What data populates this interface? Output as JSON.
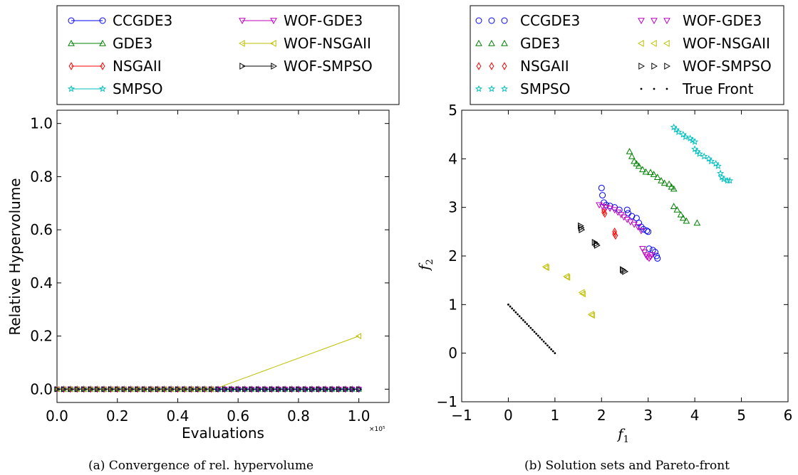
{
  "charts": [
    {
      "caption": "(a) Convergence of rel. hypervolume",
      "chart_data": {
        "type": "line",
        "title": "",
        "xlabel": "Evaluations",
        "ylabel": "Relative Hypervolume",
        "x_multiplier": "×10⁵",
        "xlim": [
          0.0,
          1.1
        ],
        "ylim": [
          -0.05,
          1.05
        ],
        "x_ticks": [
          "0.0",
          "0.2",
          "0.4",
          "0.6",
          "0.8",
          "1.0"
        ],
        "y_ticks": [
          "0.0",
          "0.2",
          "0.4",
          "0.6",
          "0.8",
          "1.0"
        ],
        "legend_placement": "above plot, two columns",
        "grid": false,
        "series": [
          {
            "name": "CCGDE3",
            "color": "#0000ff",
            "marker": "circle",
            "x": [
              0.0,
              1.0
            ],
            "y": [
              0.0,
              0.0
            ]
          },
          {
            "name": "GDE3",
            "color": "#008000",
            "marker": "triangle-up",
            "x": [
              0.0,
              1.0
            ],
            "y": [
              0.0,
              0.0
            ]
          },
          {
            "name": "NSGAII",
            "color": "#ff0000",
            "marker": "diamond",
            "x": [
              0.0,
              1.0
            ],
            "y": [
              0.0,
              0.0
            ]
          },
          {
            "name": "SMPSO",
            "color": "#00bfbf",
            "marker": "star",
            "x": [
              0.0,
              1.0
            ],
            "y": [
              0.0,
              0.0
            ]
          },
          {
            "name": "WOF-GDE3",
            "color": "#bf00bf",
            "marker": "triangle-down",
            "x": [
              0.0,
              1.0
            ],
            "y": [
              0.0,
              0.0
            ]
          },
          {
            "name": "WOF-NSGAII",
            "color": "#bfbf00",
            "marker": "triangle-left",
            "x": [
              0.0,
              0.52,
              1.0
            ],
            "y": [
              0.0,
              0.0,
              0.2
            ]
          },
          {
            "name": "WOF-SMPSO",
            "color": "#000000",
            "marker": "triangle-right",
            "x": [
              0.0,
              1.0
            ],
            "y": [
              0.0,
              0.0
            ]
          }
        ]
      }
    },
    {
      "caption": "(b) Solution sets and Pareto-front",
      "chart_data": {
        "type": "scatter",
        "title": "",
        "xlabel": "f1",
        "ylabel": "f2",
        "xlim": [
          -1,
          6
        ],
        "ylim": [
          -1,
          5
        ],
        "x_ticks": [
          "−1",
          "0",
          "1",
          "2",
          "3",
          "4",
          "5",
          "6"
        ],
        "y_ticks": [
          "−1",
          "0",
          "1",
          "2",
          "3",
          "4",
          "5"
        ],
        "legend_placement": "above plot, two columns",
        "grid": false,
        "series": [
          {
            "name": "CCGDE3",
            "color": "#0000ff",
            "marker": "circle",
            "points": [
              [
                2.0,
                3.4
              ],
              [
                2.02,
                3.25
              ],
              [
                2.05,
                3.1
              ],
              [
                2.1,
                3.05
              ],
              [
                2.18,
                3.03
              ],
              [
                2.28,
                3.0
              ],
              [
                2.38,
                2.95
              ],
              [
                2.55,
                2.95
              ],
              [
                2.57,
                2.88
              ],
              [
                2.65,
                2.82
              ],
              [
                2.75,
                2.78
              ],
              [
                2.8,
                2.68
              ],
              [
                2.85,
                2.6
              ],
              [
                2.9,
                2.55
              ],
              [
                2.97,
                2.52
              ],
              [
                3.0,
                2.5
              ],
              [
                3.02,
                2.15
              ],
              [
                3.1,
                2.12
              ],
              [
                3.15,
                2.08
              ],
              [
                3.18,
                2.0
              ],
              [
                3.2,
                1.95
              ]
            ]
          },
          {
            "name": "GDE3",
            "color": "#008000",
            "marker": "triangle-up",
            "points": [
              [
                2.6,
                4.15
              ],
              [
                2.65,
                4.05
              ],
              [
                2.7,
                3.95
              ],
              [
                2.75,
                3.9
              ],
              [
                2.8,
                3.85
              ],
              [
                2.88,
                3.78
              ],
              [
                2.95,
                3.73
              ],
              [
                3.05,
                3.72
              ],
              [
                3.12,
                3.68
              ],
              [
                3.2,
                3.62
              ],
              [
                3.28,
                3.55
              ],
              [
                3.35,
                3.5
              ],
              [
                3.45,
                3.48
              ],
              [
                3.5,
                3.42
              ],
              [
                3.55,
                3.38
              ],
              [
                3.55,
                3.02
              ],
              [
                3.62,
                2.95
              ],
              [
                3.7,
                2.85
              ],
              [
                3.75,
                2.78
              ],
              [
                3.82,
                2.72
              ],
              [
                4.05,
                2.68
              ]
            ]
          },
          {
            "name": "NSGAII",
            "color": "#ff0000",
            "marker": "diamond",
            "points": [
              [
                2.05,
                2.95
              ],
              [
                2.05,
                2.9
              ],
              [
                2.07,
                2.87
              ],
              [
                2.28,
                2.5
              ],
              [
                2.28,
                2.45
              ],
              [
                2.3,
                2.42
              ]
            ]
          },
          {
            "name": "SMPSO",
            "color": "#00bfbf",
            "marker": "star",
            "points": [
              [
                3.55,
                4.65
              ],
              [
                3.6,
                4.6
              ],
              [
                3.65,
                4.55
              ],
              [
                3.75,
                4.5
              ],
              [
                3.8,
                4.45
              ],
              [
                3.9,
                4.42
              ],
              [
                3.95,
                4.38
              ],
              [
                4.0,
                4.35
              ],
              [
                4.0,
                4.2
              ],
              [
                4.05,
                4.15
              ],
              [
                4.1,
                4.1
              ],
              [
                4.2,
                4.05
              ],
              [
                4.3,
                4.0
              ],
              [
                4.35,
                3.95
              ],
              [
                4.45,
                3.9
              ],
              [
                4.5,
                3.85
              ],
              [
                4.55,
                3.7
              ],
              [
                4.58,
                3.62
              ],
              [
                4.62,
                3.58
              ],
              [
                4.7,
                3.55
              ],
              [
                4.75,
                3.55
              ]
            ]
          },
          {
            "name": "WOF-GDE3",
            "color": "#bf00bf",
            "marker": "triangle-down",
            "points": [
              [
                1.95,
                3.05
              ],
              [
                2.02,
                3.02
              ],
              [
                2.1,
                3.0
              ],
              [
                2.18,
                2.98
              ],
              [
                2.28,
                2.95
              ],
              [
                2.35,
                2.9
              ],
              [
                2.42,
                2.85
              ],
              [
                2.48,
                2.8
              ],
              [
                2.55,
                2.75
              ],
              [
                2.62,
                2.7
              ],
              [
                2.7,
                2.65
              ],
              [
                2.78,
                2.6
              ],
              [
                2.85,
                2.52
              ],
              [
                2.88,
                2.15
              ],
              [
                2.92,
                2.08
              ],
              [
                2.95,
                2.02
              ],
              [
                2.98,
                1.98
              ],
              [
                3.02,
                1.95
              ],
              [
                3.05,
                1.98
              ],
              [
                3.08,
                2.02
              ]
            ]
          },
          {
            "name": "WOF-NSGAII",
            "color": "#bfbf00",
            "marker": "triangle-left",
            "points": [
              [
                0.8,
                1.78
              ],
              [
                0.82,
                1.76
              ],
              [
                1.25,
                1.58
              ],
              [
                1.27,
                1.56
              ],
              [
                1.58,
                1.25
              ],
              [
                1.6,
                1.22
              ],
              [
                1.78,
                0.8
              ],
              [
                1.8,
                0.78
              ]
            ]
          },
          {
            "name": "WOF-SMPSO",
            "color": "#000000",
            "marker": "triangle-right",
            "points": [
              [
                1.55,
                2.62
              ],
              [
                1.56,
                2.58
              ],
              [
                1.57,
                2.54
              ],
              [
                1.85,
                2.28
              ],
              [
                1.88,
                2.25
              ],
              [
                1.9,
                2.22
              ],
              [
                2.45,
                1.72
              ],
              [
                2.47,
                1.7
              ],
              [
                2.5,
                1.68
              ]
            ]
          },
          {
            "name": "True Front",
            "color": "#000000",
            "marker": "dot",
            "points": [
              [
                0.0,
                1.0
              ],
              [
                0.04,
                0.96
              ],
              [
                0.08,
                0.92
              ],
              [
                0.12,
                0.88
              ],
              [
                0.16,
                0.84
              ],
              [
                0.2,
                0.8
              ],
              [
                0.24,
                0.76
              ],
              [
                0.28,
                0.72
              ],
              [
                0.32,
                0.68
              ],
              [
                0.36,
                0.64
              ],
              [
                0.4,
                0.6
              ],
              [
                0.44,
                0.56
              ],
              [
                0.48,
                0.52
              ],
              [
                0.52,
                0.48
              ],
              [
                0.56,
                0.44
              ],
              [
                0.6,
                0.4
              ],
              [
                0.64,
                0.36
              ],
              [
                0.68,
                0.32
              ],
              [
                0.72,
                0.28
              ],
              [
                0.76,
                0.24
              ],
              [
                0.8,
                0.2
              ],
              [
                0.84,
                0.16
              ],
              [
                0.88,
                0.12
              ],
              [
                0.92,
                0.08
              ],
              [
                0.96,
                0.04
              ],
              [
                1.0,
                0.0
              ]
            ]
          }
        ]
      }
    }
  ]
}
